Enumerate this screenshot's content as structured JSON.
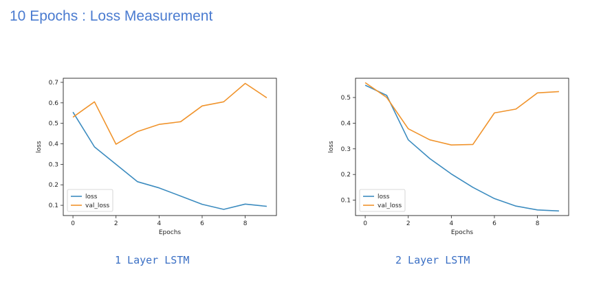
{
  "page_title": "10 Epochs : Loss Measurement",
  "colors": {
    "loss": "#3b8bbf",
    "val_loss": "#f0932b",
    "title": "#4a7bd0",
    "caption": "#3a6fc4"
  },
  "chart_data": [
    {
      "type": "line",
      "caption": "1 Layer LSTM",
      "xlabel": "Epochs",
      "ylabel": "loss",
      "xlim": [
        -0.45,
        9.45
      ],
      "ylim": [
        0.05,
        0.72
      ],
      "xticks": [
        0,
        2,
        4,
        6,
        8
      ],
      "yticks": [
        0.1,
        0.2,
        0.3,
        0.4,
        0.5,
        0.6,
        0.7
      ],
      "legend_position": "lower-left",
      "x": [
        0,
        1,
        2,
        3,
        4,
        5,
        6,
        7,
        8,
        9
      ],
      "series": [
        {
          "name": "loss",
          "values": [
            0.555,
            0.385,
            0.3,
            0.215,
            0.185,
            0.145,
            0.105,
            0.08,
            0.106,
            0.095
          ]
        },
        {
          "name": "val_loss",
          "values": [
            0.53,
            0.605,
            0.398,
            0.46,
            0.495,
            0.508,
            0.585,
            0.605,
            0.695,
            0.625
          ]
        }
      ]
    },
    {
      "type": "line",
      "caption": "2 Layer LSTM",
      "xlabel": "Epochs",
      "ylabel": "loss",
      "xlim": [
        -0.45,
        9.45
      ],
      "ylim": [
        0.04,
        0.575
      ],
      "xticks": [
        0,
        2,
        4,
        6,
        8
      ],
      "yticks": [
        0.1,
        0.2,
        0.3,
        0.4,
        0.5
      ],
      "legend_position": "lower-left",
      "x": [
        0,
        1,
        2,
        3,
        4,
        5,
        6,
        7,
        8,
        9
      ],
      "series": [
        {
          "name": "loss",
          "values": [
            0.548,
            0.508,
            0.335,
            0.262,
            0.202,
            0.15,
            0.106,
            0.077,
            0.062,
            0.058
          ]
        },
        {
          "name": "val_loss",
          "values": [
            0.558,
            0.5,
            0.378,
            0.335,
            0.315,
            0.317,
            0.44,
            0.455,
            0.518,
            0.523
          ]
        }
      ]
    }
  ]
}
